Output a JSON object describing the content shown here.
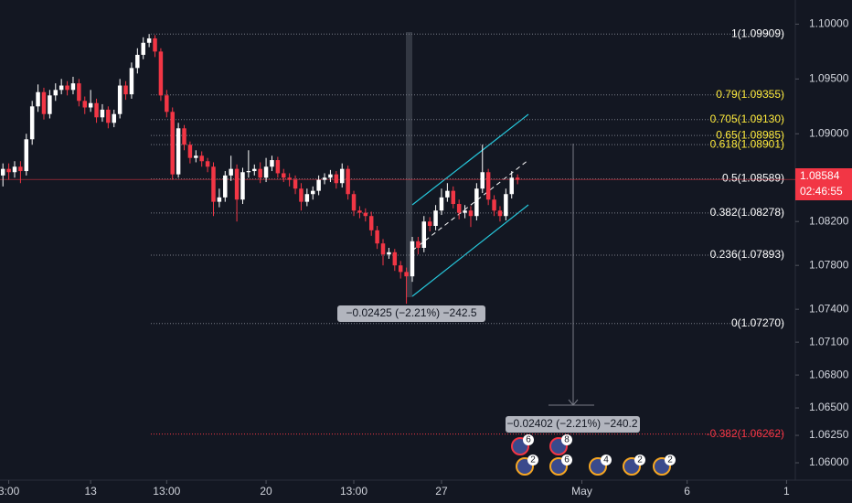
{
  "chart_data": {
    "type": "candlestick",
    "up_color": "#ffffff",
    "down_color": "#f23645",
    "grid": false,
    "xlim": [
      -0.5,
      135.5
    ],
    "xticks": [
      {
        "value": 1,
        "label": "3:00"
      },
      {
        "value": 15,
        "label": "13"
      },
      {
        "value": 28,
        "label": "13:00"
      },
      {
        "value": 45,
        "label": "20"
      },
      {
        "value": 60,
        "label": "13:00"
      },
      {
        "value": 75,
        "label": "27"
      },
      {
        "value": 99,
        "label": "May"
      },
      {
        "value": 117,
        "label": "6"
      },
      {
        "value": 134,
        "label": "1"
      }
    ],
    "ylim": [
      1.058,
      1.1022
    ],
    "yticks": [
      {
        "value": 1.1,
        "label": "1.10000"
      },
      {
        "value": 1.095,
        "label": "1.09500"
      },
      {
        "value": 1.09,
        "label": "1.09000"
      },
      {
        "value": 1.082,
        "label": "1.08200"
      },
      {
        "value": 1.078,
        "label": "1.07800"
      },
      {
        "value": 1.074,
        "label": "1.07400"
      },
      {
        "value": 1.071,
        "label": "1.07100"
      },
      {
        "value": 1.068,
        "label": "1.06800"
      },
      {
        "value": 1.065,
        "label": "1.06500"
      },
      {
        "value": 1.0625,
        "label": "1.06250"
      },
      {
        "value": 1.06,
        "label": "1.06000"
      }
    ],
    "open": [
      1.0862,
      1.0868,
      1.0865,
      1.087,
      1.0866,
      1.0895,
      1.0925,
      1.0938,
      1.0918,
      1.0935,
      1.094,
      1.0944,
      1.094,
      1.0946,
      1.093,
      1.0924,
      1.0928,
      1.0915,
      1.0922,
      1.091,
      1.0918,
      1.0944,
      1.0936,
      1.096,
      1.0972,
      1.0983,
      1.0987,
      1.0975,
      1.0935,
      1.092,
      1.0863,
      1.0905,
      1.089,
      1.0878,
      1.088,
      1.0875,
      1.087,
      1.0838,
      1.0842,
      1.0862,
      1.0868,
      1.084,
      1.0865,
      1.0866,
      1.0868,
      1.086,
      1.087,
      1.0876,
      1.0864,
      1.086,
      1.0858,
      1.085,
      1.0838,
      1.0845,
      1.0848,
      1.0858,
      1.086,
      1.0863,
      1.0855,
      1.0868,
      1.0845,
      1.083,
      1.0828,
      1.0825,
      1.0812,
      1.08,
      1.079,
      1.0792,
      1.078,
      1.0774,
      1.077,
      1.0802,
      1.0796,
      1.082,
      1.0816,
      1.083,
      1.0842,
      1.0848,
      1.0836,
      1.0828,
      1.083,
      1.0825,
      1.085,
      1.0865,
      1.084,
      1.083,
      1.0825,
      1.0845,
      1.086
    ],
    "high": [
      1.0873,
      1.0873,
      1.0875,
      1.0875,
      1.09,
      1.093,
      1.0945,
      1.0942,
      1.094,
      1.0946,
      1.095,
      1.0948,
      1.0952,
      1.095,
      1.0934,
      1.094,
      1.0932,
      1.0927,
      1.0925,
      1.0922,
      1.095,
      1.0948,
      1.0965,
      1.0978,
      1.0988,
      1.0991,
      1.099,
      1.0978,
      1.094,
      1.0924,
      1.091,
      1.0908,
      1.0893,
      1.0885,
      1.0884,
      1.0878,
      1.0874,
      1.085,
      1.0866,
      1.088,
      1.0872,
      1.0869,
      1.0885,
      1.0872,
      1.0874,
      1.0878,
      1.088,
      1.0879,
      1.0868,
      1.0864,
      1.0862,
      1.0855,
      1.085,
      1.0852,
      1.0862,
      1.0864,
      1.0867,
      1.0866,
      1.0873,
      1.0871,
      1.0848,
      1.0834,
      1.0832,
      1.0829,
      1.0816,
      1.0804,
      1.0796,
      1.0795,
      1.0784,
      1.0778,
      1.0806,
      1.0806,
      1.0825,
      1.0824,
      1.0835,
      1.085,
      1.0855,
      1.0852,
      1.084,
      1.0835,
      1.0834,
      1.0855,
      1.089,
      1.0868,
      1.0844,
      1.0834,
      1.085,
      1.0866,
      1.0863
    ],
    "low": [
      1.0852,
      1.0858,
      1.086,
      1.0855,
      1.0862,
      1.089,
      1.092,
      1.0913,
      1.0914,
      1.093,
      1.0936,
      1.0935,
      1.0936,
      1.0925,
      1.0918,
      1.092,
      1.091,
      1.0911,
      1.0905,
      1.0906,
      1.0914,
      1.0931,
      1.0932,
      1.0955,
      1.0968,
      1.0979,
      1.097,
      1.093,
      1.0915,
      1.0858,
      1.086,
      1.0885,
      1.0873,
      1.0874,
      1.087,
      1.0865,
      1.0825,
      1.0833,
      1.0838,
      1.0857,
      1.082,
      1.0836,
      1.086,
      1.0862,
      1.0855,
      1.0856,
      1.0866,
      1.086,
      1.0856,
      1.0852,
      1.0845,
      1.083,
      1.0834,
      1.084,
      1.0844,
      1.0854,
      1.0856,
      1.085,
      1.0851,
      1.084,
      1.0825,
      1.0823,
      1.082,
      1.0807,
      1.0795,
      1.078,
      1.0786,
      1.0775,
      1.0768,
      1.0745,
      1.0765,
      1.079,
      1.0792,
      1.0811,
      1.0812,
      1.0826,
      1.0838,
      1.0832,
      1.0822,
      1.0823,
      1.0815,
      1.0821,
      1.0846,
      1.0835,
      1.0825,
      1.082,
      1.0821,
      1.0841,
      1.0854
    ],
    "close": [
      1.0868,
      1.0865,
      1.087,
      1.0866,
      1.0895,
      1.0925,
      1.0938,
      1.0918,
      1.0935,
      1.094,
      1.0944,
      1.094,
      1.0946,
      1.093,
      1.0924,
      1.0928,
      1.0915,
      1.0922,
      1.091,
      1.0918,
      1.0944,
      1.0936,
      1.096,
      1.0972,
      1.0983,
      1.0987,
      1.0975,
      1.0935,
      1.092,
      1.0863,
      1.0905,
      1.089,
      1.0878,
      1.088,
      1.0875,
      1.087,
      1.0838,
      1.0842,
      1.0862,
      1.0868,
      1.084,
      1.0865,
      1.0866,
      1.0868,
      1.086,
      1.087,
      1.0876,
      1.0864,
      1.086,
      1.0858,
      1.085,
      1.0838,
      1.0845,
      1.0848,
      1.0858,
      1.086,
      1.0863,
      1.0855,
      1.0868,
      1.0845,
      1.083,
      1.0828,
      1.0825,
      1.0812,
      1.08,
      1.079,
      1.0792,
      1.078,
      1.0774,
      1.077,
      1.0802,
      1.0796,
      1.082,
      1.0816,
      1.083,
      1.0842,
      1.0848,
      1.0836,
      1.0828,
      1.083,
      1.0825,
      1.085,
      1.0865,
      1.084,
      1.083,
      1.0825,
      1.0845,
      1.086,
      1.0858
    ],
    "fib_levels": [
      {
        "value": 1.09909,
        "label": "1(1.09909)",
        "color": "#ffffff"
      },
      {
        "value": 1.09355,
        "label": "0.79(1.09355)",
        "color": "#ffeb3b"
      },
      {
        "value": 1.0913,
        "label": "0.705(1.09130)",
        "color": "#ffeb3b"
      },
      {
        "value": 1.08985,
        "label": "0.65(1.08985)",
        "color": "#ffeb3b"
      },
      {
        "value": 1.08901,
        "label": "0.618(1.08901)",
        "color": "#ffeb3b"
      },
      {
        "value": 1.08589,
        "label": "0.5(1.08589)",
        "color": "#ffffff"
      },
      {
        "value": 1.08278,
        "label": "0.382(1.08278)",
        "color": "#ffffff"
      },
      {
        "value": 1.07893,
        "label": "0.236(1.07893)",
        "color": "#ffffff"
      },
      {
        "value": 1.0727,
        "label": "0(1.07270)",
        "color": "#ffffff"
      },
      {
        "value": 1.06262,
        "label": "-0.382(1.06262)",
        "color": "#f23645"
      }
    ],
    "last_price": 1.08584,
    "countdown": "02:46:55",
    "annotations": [
      "−0.02425 (−2.21%) −242.5",
      "−0.02402 (−2.21%) −240.2"
    ],
    "events": [
      "6",
      "8",
      "2",
      "6",
      "4",
      "2",
      "2"
    ]
  }
}
